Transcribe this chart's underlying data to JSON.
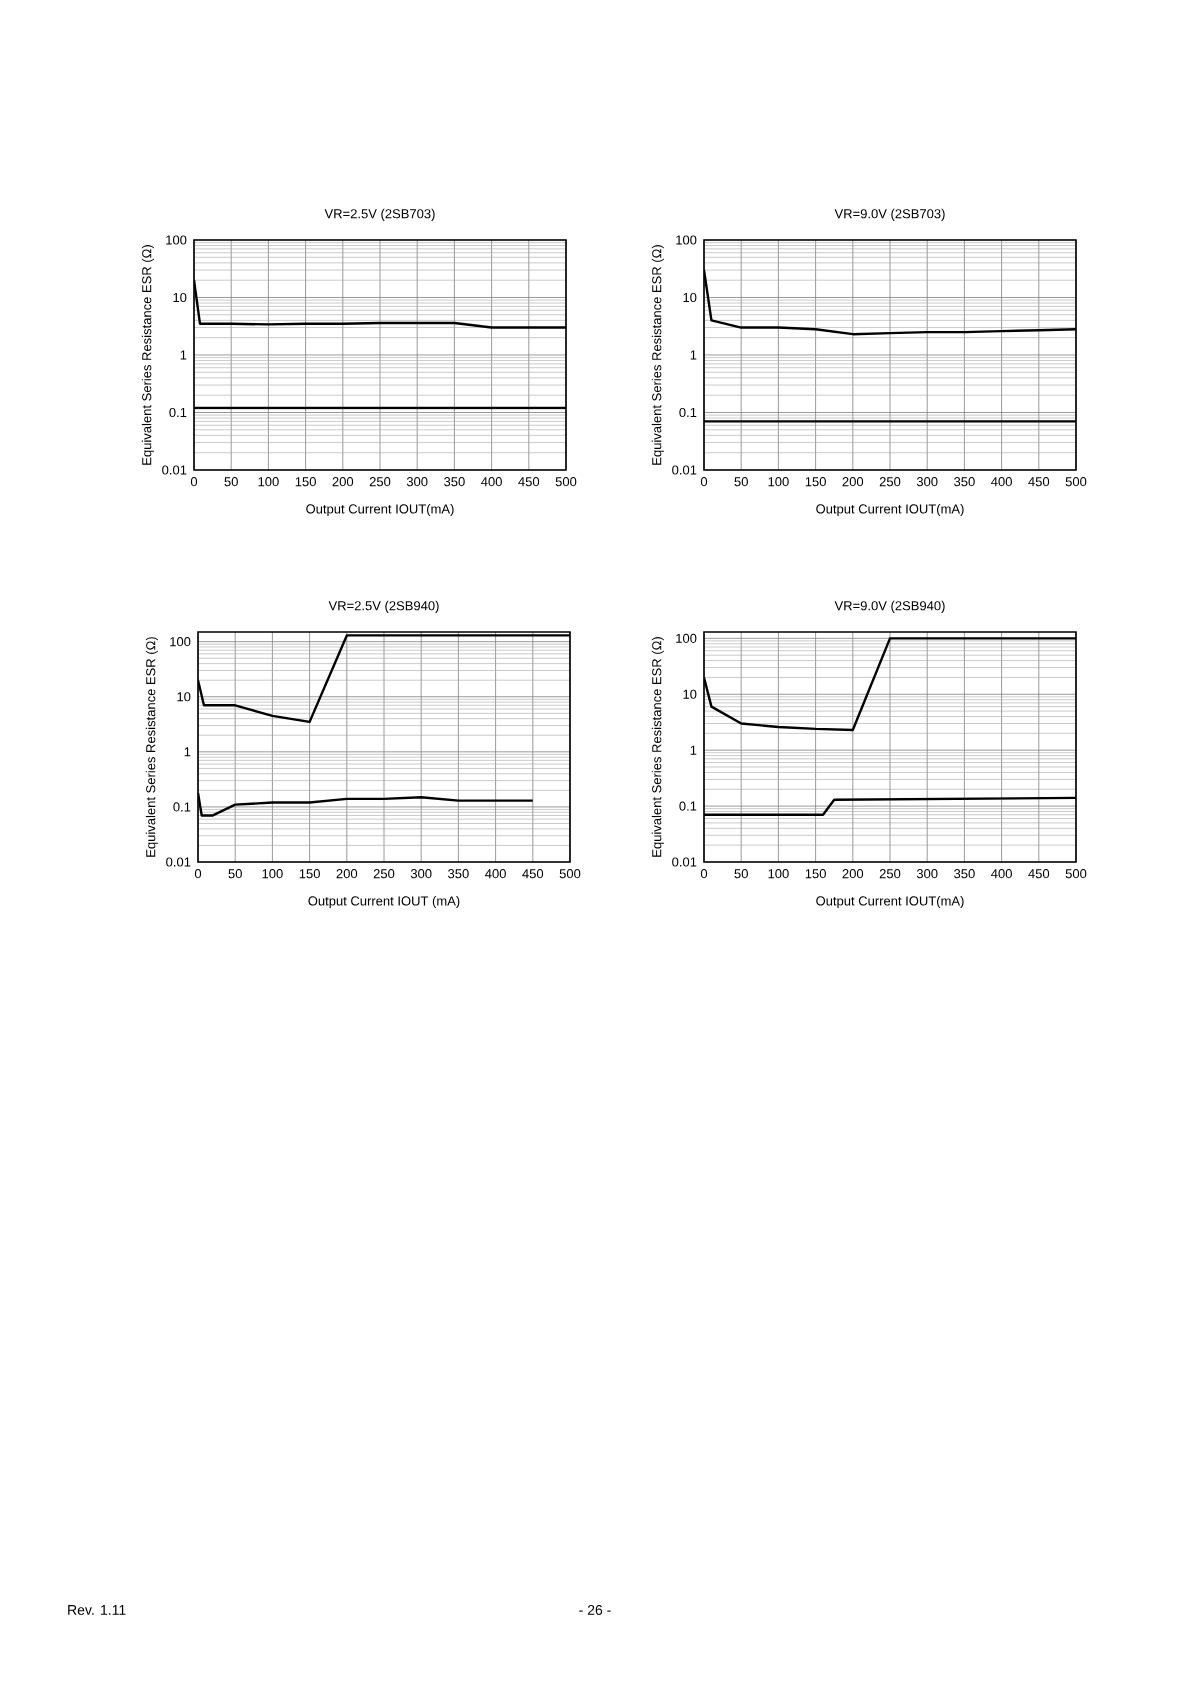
{
  "chart_data": [
    {
      "type": "line",
      "title": "VR=2.5V (2SB703)",
      "xlabel": "Output Current IOUT(mA)",
      "ylabel": "Equivalent Series Resistance ESR (Ω)",
      "log": "y",
      "grid": true,
      "marker": "none",
      "line_style": "solid",
      "xlim": [
        0,
        500
      ],
      "ylim": [
        0.01,
        100
      ],
      "xticks": [
        0,
        50,
        100,
        150,
        200,
        250,
        300,
        350,
        400,
        450,
        500
      ],
      "yticks": [
        0.01,
        0.1,
        1,
        10,
        100
      ],
      "series": [
        {
          "color": "#000000",
          "x": [
            0,
            8,
            50,
            100,
            150,
            200,
            250,
            300,
            350,
            400,
            450,
            500
          ],
          "values": [
            20,
            3.5,
            3.5,
            3.4,
            3.5,
            3.5,
            3.6,
            3.6,
            3.6,
            3.0,
            3.0,
            3.0
          ]
        },
        {
          "color": "#000000",
          "x": [
            0,
            500
          ],
          "values": [
            0.12,
            0.12
          ]
        }
      ]
    },
    {
      "type": "line",
      "title": "VR=9.0V (2SB703)",
      "xlabel": "Output Current IOUT(mA)",
      "ylabel": "Equivalent Series Resistance ESR (Ω)",
      "log": "y",
      "grid": true,
      "marker": "none",
      "line_style": "solid",
      "xlim": [
        0,
        500
      ],
      "ylim": [
        0.01,
        100
      ],
      "xticks": [
        0,
        50,
        100,
        150,
        200,
        250,
        300,
        350,
        400,
        450,
        500
      ],
      "yticks": [
        0.01,
        0.1,
        1,
        10,
        100
      ],
      "series": [
        {
          "color": "#000000",
          "x": [
            0,
            10,
            50,
            100,
            150,
            200,
            250,
            300,
            350,
            400,
            450,
            500
          ],
          "values": [
            30,
            4,
            3.0,
            3.0,
            2.8,
            2.3,
            2.4,
            2.5,
            2.5,
            2.6,
            2.7,
            2.8
          ]
        },
        {
          "color": "#000000",
          "x": [
            0,
            500
          ],
          "values": [
            0.07,
            0.07
          ]
        }
      ]
    },
    {
      "type": "line",
      "title": "VR=2.5V (2SB940)",
      "xlabel": "Output Current IOUT (mA)",
      "ylabel": "Equivalent Series Resistance ESR (Ω)",
      "log": "y",
      "grid": true,
      "marker": "none",
      "line_style": "solid",
      "xlim": [
        0,
        500
      ],
      "ylim": [
        0.01,
        150
      ],
      "xticks": [
        0,
        50,
        100,
        150,
        200,
        250,
        300,
        350,
        400,
        450,
        500
      ],
      "yticks": [
        0.01,
        0.1,
        1,
        10,
        100
      ],
      "series": [
        {
          "color": "#000000",
          "x": [
            0,
            8,
            50,
            100,
            150,
            200,
            500
          ],
          "values": [
            20,
            7,
            7,
            4.5,
            3.5,
            130,
            130
          ]
        },
        {
          "color": "#000000",
          "x": [
            0,
            5,
            20,
            50,
            100,
            150,
            200,
            250,
            300,
            350,
            400,
            450
          ],
          "values": [
            0.18,
            0.07,
            0.07,
            0.11,
            0.12,
            0.12,
            0.14,
            0.14,
            0.15,
            0.13,
            0.13,
            0.13
          ]
        }
      ]
    },
    {
      "type": "line",
      "title": "VR=9.0V (2SB940)",
      "xlabel": "Output Current IOUT(mA)",
      "ylabel": "Equivalent Series Resistance ESR (Ω)",
      "log": "y",
      "grid": true,
      "marker": "none",
      "line_style": "solid",
      "xlim": [
        0,
        500
      ],
      "ylim": [
        0.01,
        130
      ],
      "xticks": [
        0,
        50,
        100,
        150,
        200,
        250,
        300,
        350,
        400,
        450,
        500
      ],
      "yticks": [
        0.01,
        0.1,
        1,
        10,
        100
      ],
      "annotations": [
        "Rev. 1.11",
        "- 26 -"
      ],
      "series": [
        {
          "color": "#000000",
          "x": [
            0,
            10,
            50,
            100,
            150,
            200,
            250,
            500
          ],
          "values": [
            20,
            6,
            3.0,
            2.6,
            2.4,
            2.3,
            100,
            100
          ]
        },
        {
          "color": "#000000",
          "x": [
            0,
            160,
            175,
            500
          ],
          "values": [
            0.07,
            0.07,
            0.13,
            0.14
          ]
        }
      ]
    }
  ]
}
